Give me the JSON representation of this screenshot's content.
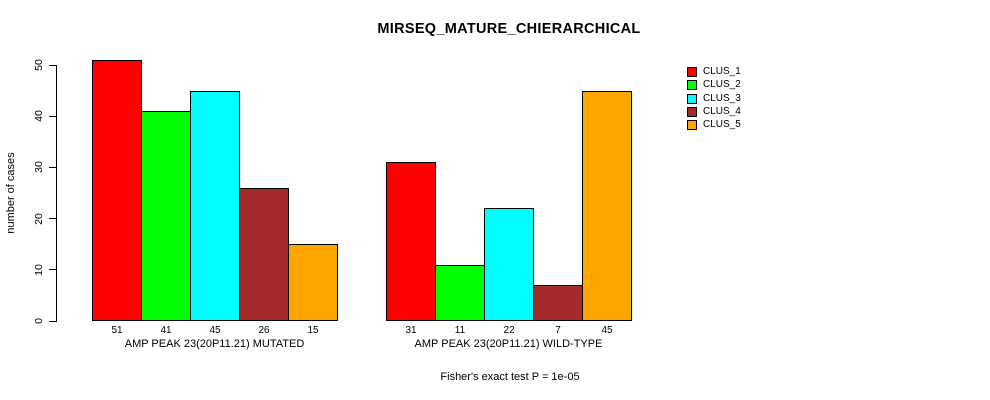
{
  "chart_data": {
    "type": "bar",
    "title": "MIRSEQ_MATURE_CHIERARCHICAL",
    "subtitle": "Fisher's exact test P = 1e-05",
    "ylabel": "number of cases",
    "xlabel": "",
    "ylim": [
      0,
      50
    ],
    "yticks": [
      0,
      10,
      20,
      30,
      40,
      50
    ],
    "grid": "off",
    "legend_position": "top-right",
    "legend": [
      {
        "label": "CLUS_1",
        "color": "#FF0000"
      },
      {
        "label": "CLUS_2",
        "color": "#00FF00"
      },
      {
        "label": "CLUS_3",
        "color": "#00FFFF"
      },
      {
        "label": "CLUS_4",
        "color": "#A52A2A"
      },
      {
        "label": "CLUS_5",
        "color": "#FFA500"
      }
    ],
    "categories": [
      "CLUS_1",
      "CLUS_2",
      "CLUS_3",
      "CLUS_4",
      "CLUS_5"
    ],
    "groups": [
      {
        "label": "AMP PEAK 23(20P11.21) MUTATED",
        "values": [
          51,
          41,
          45,
          26,
          15
        ]
      },
      {
        "label": "AMP PEAK 23(20P11.21) WILD-TYPE",
        "values": [
          31,
          11,
          22,
          7,
          45
        ]
      }
    ]
  }
}
